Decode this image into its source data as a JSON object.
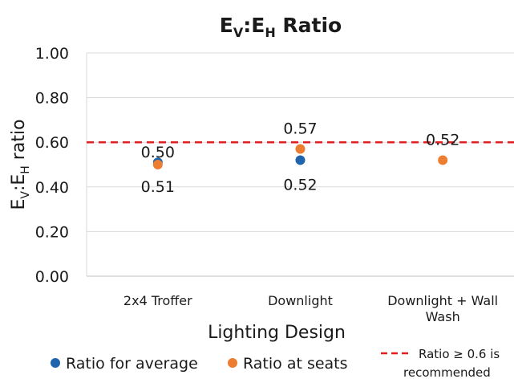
{
  "chart_data": {
    "type": "scatter",
    "title": {
      "main": "E",
      "sub1": "V",
      "sep": ":E",
      "sub2": "H",
      "rest": " Ratio"
    },
    "ylabel": {
      "main": "E",
      "sub1": "V",
      "sep": ":E",
      "sub2": "H",
      "rest": " ratio"
    },
    "xlabel": "Lighting Design",
    "ylim": [
      0,
      1
    ],
    "yticks": [
      "0.00",
      "0.20",
      "0.40",
      "0.60",
      "0.80",
      "1.00"
    ],
    "categories": [
      [
        "2x4 Troffer"
      ],
      [
        "Downlight"
      ],
      [
        "Downlight + Wall",
        "Wash"
      ]
    ],
    "grid": true,
    "series": [
      {
        "name": "Ratio for average",
        "color": "#1f64ad",
        "values": [
          0.51,
          0.52,
          null
        ],
        "labels": [
          "0.51",
          "0.52",
          null
        ]
      },
      {
        "name": "Ratio at seats",
        "color": "#ed7d31",
        "values": [
          0.5,
          0.57,
          0.52
        ],
        "labels": [
          "0.50",
          "0.57",
          "0.52"
        ]
      }
    ],
    "reference_line": {
      "value": 0.6,
      "color": "#e02020",
      "style": "dashed",
      "label": [
        "Ratio ≥ 0.6 is",
        "recommended"
      ]
    },
    "legend_position": "bottom"
  }
}
